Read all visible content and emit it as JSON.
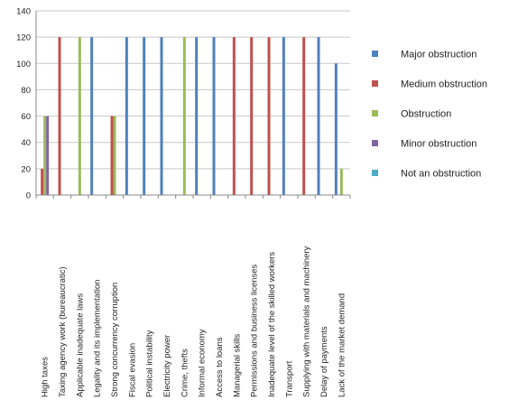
{
  "chart_data": {
    "type": "bar",
    "ylim": [
      0,
      140
    ],
    "yticks": [
      0,
      20,
      40,
      60,
      80,
      100,
      120,
      140
    ],
    "grid": true,
    "legend_position": "right",
    "categories": [
      "High taxes",
      "Taxing agency work (bureaucratic)",
      "Applicable inadequate laws",
      "Legality and its implementation",
      "Strong concurrency corruption",
      "Fiscal evasion",
      "Political instability",
      "Electricity power",
      "Crime, thefts",
      "Informal economy",
      "Access to loans",
      "Managerial skills",
      "Permissions and business licenses",
      "Inadequate level of the skilled workers",
      "Transport",
      "Supplying with materials and machinery",
      "Delay of payments",
      "Lack of the market demand"
    ],
    "series": [
      {
        "name": "Major obstruction",
        "color": "#4f81bd",
        "values": [
          0,
          0,
          0,
          120,
          0,
          120,
          120,
          120,
          0,
          120,
          120,
          0,
          0,
          0,
          120,
          0,
          120,
          100
        ]
      },
      {
        "name": "Medium obstruction",
        "color": "#c0504d",
        "values": [
          20,
          120,
          0,
          0,
          60,
          0,
          0,
          0,
          0,
          0,
          0,
          120,
          120,
          120,
          0,
          120,
          0,
          0
        ]
      },
      {
        "name": "Obstruction",
        "color": "#9bbb59",
        "values": [
          60,
          0,
          120,
          0,
          60,
          0,
          0,
          0,
          120,
          0,
          0,
          0,
          0,
          0,
          0,
          0,
          0,
          20
        ]
      },
      {
        "name": "Minor obstruction",
        "color": "#8064a2",
        "values": [
          60,
          0,
          0,
          0,
          0,
          0,
          0,
          0,
          0,
          0,
          0,
          0,
          0,
          0,
          0,
          0,
          0,
          0
        ]
      },
      {
        "name": "Not an obstruction",
        "color": "#4bacc6",
        "values": [
          0,
          0,
          0,
          0,
          0,
          0,
          0,
          0,
          0,
          0,
          0,
          0,
          0,
          0,
          0,
          0,
          0,
          0
        ]
      }
    ]
  }
}
